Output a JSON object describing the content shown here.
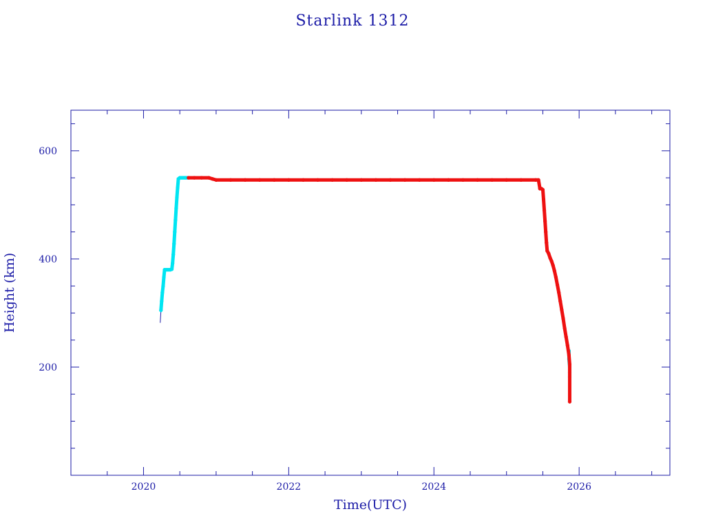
{
  "chart_data": {
    "type": "line",
    "title": "Starlink 1312",
    "xlabel": "Time(UTC)",
    "ylabel": "Height (km)",
    "xlim": [
      2019.0,
      2027.25
    ],
    "ylim": [
      0,
      675
    ],
    "x_ticks": [
      2020,
      2022,
      2024,
      2026
    ],
    "y_ticks": [
      200,
      400,
      600
    ],
    "grid": false,
    "colors": {
      "axis": "#1a1aa6",
      "line": "#1a1aa6",
      "marker_a": "#00e5f2",
      "marker_b": "#ee1111"
    },
    "series": [
      {
        "marker_color": "marker_a",
        "points": [
          [
            2020.24,
            305
          ],
          [
            2020.25,
            322
          ],
          [
            2020.26,
            338
          ],
          [
            2020.27,
            350
          ],
          [
            2020.28,
            366
          ],
          [
            2020.29,
            380
          ],
          [
            2020.31,
            380
          ],
          [
            2020.33,
            380
          ],
          [
            2020.35,
            380
          ],
          [
            2020.37,
            380
          ],
          [
            2020.39,
            381
          ],
          [
            2020.4,
            392
          ],
          [
            2020.41,
            408
          ],
          [
            2020.42,
            428
          ],
          [
            2020.43,
            450
          ],
          [
            2020.44,
            472
          ],
          [
            2020.45,
            494
          ],
          [
            2020.46,
            514
          ],
          [
            2020.47,
            532
          ],
          [
            2020.48,
            548
          ],
          [
            2020.5,
            550
          ],
          [
            2020.52,
            550
          ],
          [
            2020.54,
            550
          ],
          [
            2020.56,
            550
          ],
          [
            2020.58,
            550
          ],
          [
            2020.6,
            550
          ],
          [
            2025.86,
            230
          ],
          [
            2025.86,
            215
          ],
          [
            2025.87,
            200
          ],
          [
            2025.87,
            190
          ],
          [
            2025.87,
            182
          ]
        ]
      },
      {
        "marker_color": "marker_b",
        "points": [
          [
            2020.62,
            550
          ],
          [
            2020.7,
            550
          ],
          [
            2020.8,
            550
          ],
          [
            2020.9,
            550
          ],
          [
            2020.95,
            548
          ],
          [
            2021.0,
            546
          ],
          [
            2021.2,
            546
          ],
          [
            2021.4,
            546
          ],
          [
            2021.6,
            546
          ],
          [
            2021.8,
            546
          ],
          [
            2022.0,
            546
          ],
          [
            2022.2,
            546
          ],
          [
            2022.4,
            546
          ],
          [
            2022.6,
            546
          ],
          [
            2022.8,
            546
          ],
          [
            2023.0,
            546
          ],
          [
            2023.2,
            546
          ],
          [
            2023.4,
            546
          ],
          [
            2023.6,
            546
          ],
          [
            2023.8,
            546
          ],
          [
            2024.0,
            546
          ],
          [
            2024.2,
            546
          ],
          [
            2024.4,
            546
          ],
          [
            2024.6,
            546
          ],
          [
            2024.8,
            546
          ],
          [
            2025.0,
            546
          ],
          [
            2025.2,
            546
          ],
          [
            2025.4,
            546
          ],
          [
            2025.44,
            546
          ],
          [
            2025.46,
            530
          ],
          [
            2025.48,
            530
          ],
          [
            2025.5,
            528
          ],
          [
            2025.51,
            510
          ],
          [
            2025.52,
            490
          ],
          [
            2025.53,
            470
          ],
          [
            2025.54,
            450
          ],
          [
            2025.55,
            430
          ],
          [
            2025.56,
            415
          ],
          [
            2025.58,
            410
          ],
          [
            2025.6,
            402
          ],
          [
            2025.62,
            396
          ],
          [
            2025.64,
            388
          ],
          [
            2025.66,
            378
          ],
          [
            2025.68,
            366
          ],
          [
            2025.7,
            352
          ],
          [
            2025.72,
            338
          ],
          [
            2025.74,
            322
          ],
          [
            2025.76,
            306
          ],
          [
            2025.78,
            290
          ],
          [
            2025.8,
            272
          ],
          [
            2025.82,
            256
          ],
          [
            2025.84,
            240
          ],
          [
            2025.86,
            222
          ],
          [
            2025.87,
            205
          ],
          [
            2025.87,
            136
          ]
        ]
      }
    ],
    "line_points": [
      [
        2020.23,
        282
      ],
      [
        2020.24,
        305
      ],
      [
        2020.27,
        350
      ],
      [
        2020.29,
        380
      ],
      [
        2020.39,
        381
      ],
      [
        2020.48,
        548
      ]
    ]
  }
}
